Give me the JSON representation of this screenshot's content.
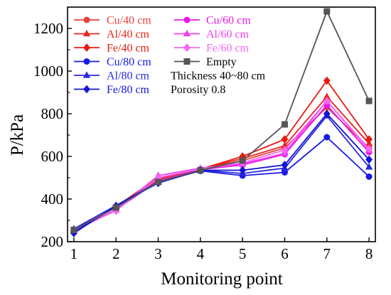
{
  "chart_data": {
    "type": "line",
    "xlabel": "Monitoring point",
    "ylabel": "P/kPa",
    "x": [
      1,
      2,
      3,
      4,
      5,
      6,
      7,
      8
    ],
    "xlim": [
      0.85,
      8.15
    ],
    "ylim": [
      200,
      1300
    ],
    "yticks": [
      200,
      400,
      600,
      800,
      1000,
      1200
    ],
    "grid": false,
    "legend_placement": "top-left",
    "legend_notes": [
      "Thickness 40~80 cm",
      "Porosity 0.8"
    ],
    "series": [
      {
        "name": "Cu/40 cm",
        "color": "#e8413c",
        "marker": "circle",
        "values": [
          255,
          360,
          490,
          540,
          580,
          640,
          830,
          640
        ]
      },
      {
        "name": "Al/40 cm",
        "color": "#e8261c",
        "marker": "triangle",
        "values": [
          250,
          365,
          495,
          540,
          590,
          650,
          880,
          660
        ]
      },
      {
        "name": "Fe/40 cm",
        "color": "#e81a10",
        "marker": "diamond",
        "values": [
          245,
          365,
          500,
          540,
          600,
          680,
          955,
          680
        ]
      },
      {
        "name": "Cu/60 cm",
        "color": "#ea18ea",
        "marker": "circle",
        "values": [
          252,
          350,
          485,
          538,
          560,
          610,
          840,
          620
        ]
      },
      {
        "name": "Al/60 cm",
        "color": "#f040f0",
        "marker": "triangle",
        "values": [
          250,
          348,
          510,
          545,
          565,
          615,
          860,
          630
        ]
      },
      {
        "name": "Fe/60 cm",
        "color": "#f566f5",
        "marker": "diamond",
        "values": [
          255,
          345,
          500,
          542,
          570,
          630,
          860,
          635
        ]
      },
      {
        "name": "Cu/80 cm",
        "color": "#1a1ae6",
        "marker": "circle",
        "values": [
          245,
          365,
          478,
          532,
          510,
          525,
          690,
          505
        ]
      },
      {
        "name": "Al/80 cm",
        "color": "#2828e0",
        "marker": "triangle",
        "values": [
          260,
          370,
          480,
          535,
          520,
          545,
          790,
          550
        ]
      },
      {
        "name": "Fe/80 cm",
        "color": "#1414d8",
        "marker": "diamond",
        "values": [
          240,
          368,
          475,
          535,
          535,
          560,
          800,
          585
        ]
      },
      {
        "name": "Empty",
        "color": "#555555",
        "marker": "square",
        "values": [
          255,
          360,
          480,
          535,
          580,
          750,
          1280,
          860
        ]
      }
    ]
  }
}
